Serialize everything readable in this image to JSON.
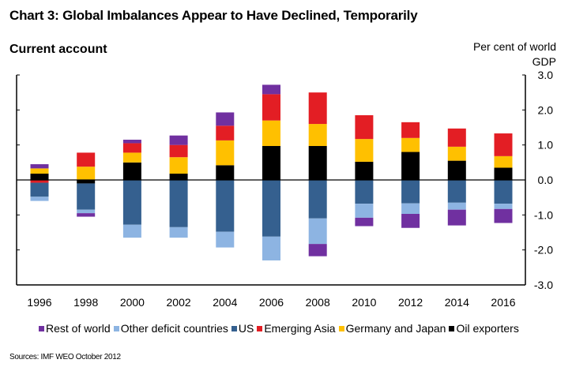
{
  "title": "Chart 3: Global Imbalances Appear to Have Declined, Temporarily",
  "subtitle": "Current account",
  "unit_line1": "Per cent of world",
  "unit_line2": "GDP",
  "source": "Sources: IMF WEO October 2012",
  "chart_data": {
    "type": "bar",
    "stacked": true,
    "title": "Chart 3: Global Imbalances Appear to Have Declined, Temporarily",
    "subtitle": "Current account",
    "xlabel": "",
    "ylabel": "Per cent of world GDP",
    "ylim": [
      -3.0,
      3.0
    ],
    "yticks": [
      "3.0",
      "2.0",
      "1.0",
      "0.0",
      "-1.0",
      "-2.0",
      "-3.0"
    ],
    "ytick_values": [
      3,
      2,
      1,
      0,
      -1,
      -2,
      -3
    ],
    "y_axis_side": "right",
    "grid": false,
    "legend_position": "bottom",
    "categories": [
      "1996",
      "1998",
      "2000",
      "2002",
      "2004",
      "2006",
      "2008",
      "2010",
      "2012",
      "2014",
      "2016"
    ],
    "series": [
      {
        "name": "Oil exporters",
        "color": "#000000",
        "values": [
          0.18,
          -0.1,
          0.5,
          0.18,
          0.42,
          0.97,
          0.97,
          0.52,
          0.8,
          0.55,
          0.35
        ]
      },
      {
        "name": "Germany and Japan",
        "color": "#FFC000",
        "values": [
          0.15,
          0.38,
          0.28,
          0.47,
          0.71,
          0.73,
          0.63,
          0.65,
          0.4,
          0.4,
          0.33
        ]
      },
      {
        "name": "Emerging Asia",
        "color": "#E31E24",
        "values": [
          -0.08,
          0.4,
          0.27,
          0.35,
          0.42,
          0.75,
          0.9,
          0.68,
          0.45,
          0.52,
          0.65
        ]
      },
      {
        "name": "US",
        "color": "#35608F",
        "values": [
          -0.4,
          -0.75,
          -1.28,
          -1.35,
          -1.48,
          -1.62,
          -1.1,
          -0.68,
          -0.67,
          -0.65,
          -0.68
        ]
      },
      {
        "name": "Other deficit countries",
        "color": "#8DB4E2",
        "values": [
          -0.12,
          -0.1,
          -0.37,
          -0.3,
          -0.45,
          -0.68,
          -0.73,
          -0.4,
          -0.3,
          -0.2,
          -0.15
        ]
      },
      {
        "name": "Rest of world",
        "color": "#7030A0",
        "values": [
          0.12,
          -0.1,
          0.1,
          0.27,
          0.38,
          0.27,
          -0.35,
          -0.24,
          -0.4,
          -0.45,
          -0.4
        ]
      }
    ],
    "legend_order": [
      "Rest of world",
      "Other deficit countries",
      "US",
      "Emerging Asia",
      "Germany and Japan",
      "Oil exporters"
    ]
  }
}
